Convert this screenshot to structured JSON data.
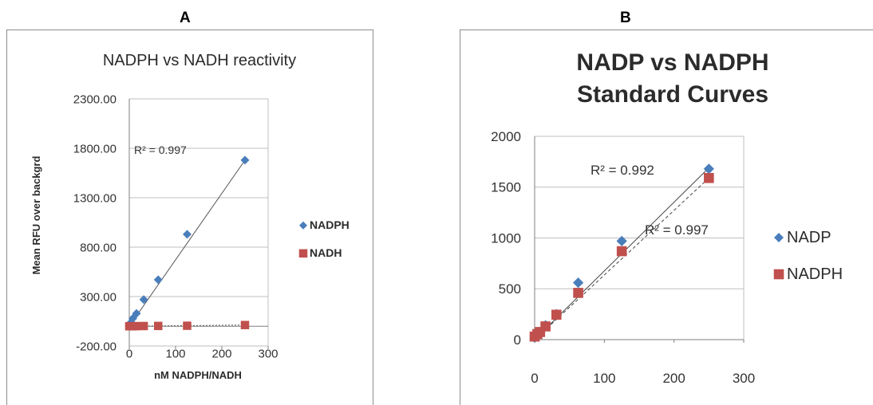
{
  "panel_labels": [
    "A",
    "B"
  ],
  "colors": {
    "nadph_blue": "#4a7ebb",
    "nadh_red": "#c0504d",
    "grid": "#bfbfbf"
  },
  "chart_data": [
    {
      "type": "scatter",
      "title": "NADPH vs NADH reactivity",
      "xlabel": "nM NADPH/NADH",
      "ylabel": "Mean RFU over backgrd",
      "xlim": [
        0,
        300
      ],
      "ylim": [
        -200,
        2300
      ],
      "x_ticks": [
        "0",
        "100",
        "200",
        "300"
      ],
      "y_ticks": [
        "-200.00",
        "300.00",
        "800.00",
        "1300.00",
        "1800.00",
        "2300.00"
      ],
      "legend_position": "right",
      "series": [
        {
          "name": "NADPH",
          "marker": "diamond",
          "color": "#4a7ebb",
          "x": [
            0,
            3.9,
            7.8,
            15.6,
            31.25,
            62.5,
            125,
            250
          ],
          "y": [
            10,
            40,
            80,
            130,
            270,
            470,
            930,
            1680
          ]
        },
        {
          "name": "NADH",
          "marker": "square",
          "color": "#c0504d",
          "x": [
            0,
            3.9,
            7.8,
            15.6,
            31.25,
            62.5,
            125,
            250
          ],
          "y": [
            0,
            0,
            0,
            1,
            2,
            3,
            5,
            12
          ]
        }
      ],
      "trendlines": [
        {
          "series": "NADPH",
          "style": "solid",
          "color": "#555555",
          "x": [
            0,
            250
          ],
          "y": [
            0,
            1680
          ]
        },
        {
          "series": "NADH",
          "style": "dotted",
          "color": "#555555",
          "x": [
            0,
            250
          ],
          "y": [
            0,
            12
          ]
        }
      ],
      "annotations": [
        {
          "text": "R² = 0.997"
        }
      ]
    },
    {
      "type": "scatter",
      "title_lines": [
        "NADP vs NADPH",
        "Standard Curves"
      ],
      "xlim": [
        0,
        300
      ],
      "ylim": [
        0,
        2000
      ],
      "x_ticks": [
        "0",
        "100",
        "200",
        "300"
      ],
      "y_ticks": [
        "0",
        "500",
        "1000",
        "1500",
        "2000"
      ],
      "legend_position": "right",
      "series": [
        {
          "name": "NADP",
          "marker": "diamond",
          "color": "#4a7ebb",
          "x": [
            0,
            3.9,
            7.8,
            15.6,
            31.25,
            62.5,
            125,
            250
          ],
          "y": [
            20,
            50,
            75,
            140,
            250,
            560,
            970,
            1680
          ]
        },
        {
          "name": "NADPH",
          "marker": "square",
          "color": "#c0504d",
          "x": [
            0,
            3.9,
            7.8,
            15.6,
            31.25,
            62.5,
            125,
            250
          ],
          "y": [
            30,
            55,
            75,
            130,
            245,
            460,
            870,
            1590
          ]
        }
      ],
      "trendlines": [
        {
          "series": "NADP",
          "style": "solid",
          "color": "#444444",
          "x": [
            0,
            250
          ],
          "y": [
            0,
            1690
          ]
        },
        {
          "series": "NADPH",
          "style": "dashed",
          "color": "#444444",
          "x": [
            0,
            250
          ],
          "y": [
            0,
            1590
          ]
        }
      ],
      "annotations": [
        {
          "text": "R² = 0.992"
        },
        {
          "text": "R² = 0.997"
        }
      ]
    }
  ]
}
